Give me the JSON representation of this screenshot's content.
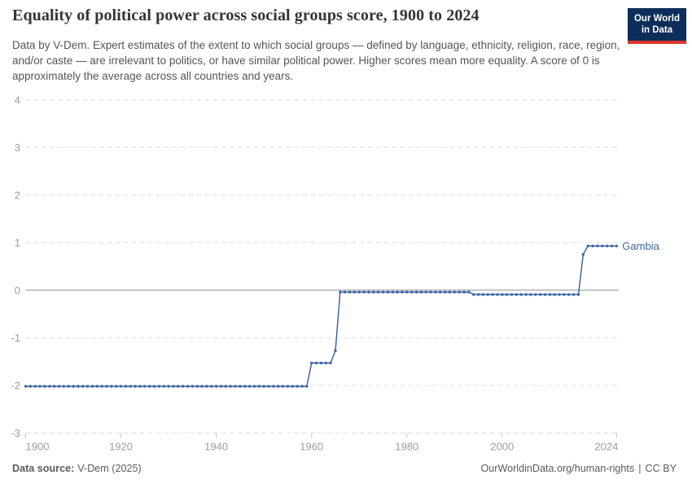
{
  "header": {
    "title": "Equality of political power across social groups score, 1900 to 2024",
    "subtitle": "Data by V-Dem. Expert estimates of the extent to which social groups — defined by language, ethnicity, religion, race, region, and/or caste — are irrelevant to politics, or have similar political power. Higher scores mean more equality. A score of 0 is approximately the average across all countries and years."
  },
  "logo": {
    "line1": "Our World",
    "line2": "in Data",
    "bg_color": "#0d2d5a",
    "accent_color": "#dc352c"
  },
  "chart_data": {
    "type": "line",
    "title": "Equality of political power across social groups score, 1900 to 2024",
    "xlabel": "",
    "ylabel": "",
    "x_ticks": [
      1900,
      1920,
      1940,
      1960,
      1980,
      2000,
      2024
    ],
    "y_ticks": [
      4,
      3,
      2,
      1,
      0,
      -1,
      -2,
      -3
    ],
    "xlim": [
      1900,
      2024
    ],
    "ylim": [
      -3,
      4
    ],
    "grid": "horizontal dashed gridlines, solid line at zero",
    "legend_position": "label at end of line",
    "series": [
      {
        "name": "Gambia",
        "color": "#3d66a5",
        "segments": [
          {
            "from": 1900,
            "to": 1959,
            "value": -2.02
          },
          {
            "from": 1960,
            "to": 1964,
            "value": -1.53
          },
          {
            "from": 1965,
            "to": 1965,
            "value": -1.27
          },
          {
            "from": 1966,
            "to": 1993,
            "value": -0.04
          },
          {
            "from": 1994,
            "to": 2016,
            "value": -0.09
          },
          {
            "from": 2017,
            "to": 2017,
            "value": 0.75
          },
          {
            "from": 2018,
            "to": 2024,
            "value": 0.93
          }
        ]
      }
    ]
  },
  "footer": {
    "source_label": "Data source:",
    "source_value": "V-Dem (2025)",
    "credit_link": "OurWorldinData.org/human-rights",
    "separator": "|",
    "credit_license": "CC BY"
  },
  "colors": {
    "line": "#3d66a5",
    "grid": "#dddddd",
    "zero_line": "#8f8f8f",
    "axis_tick": "#c8c8c8",
    "tick_label": "#9c9c9c",
    "title": "#343434",
    "subtitle": "#555555",
    "footer": "#5b5b5b"
  }
}
